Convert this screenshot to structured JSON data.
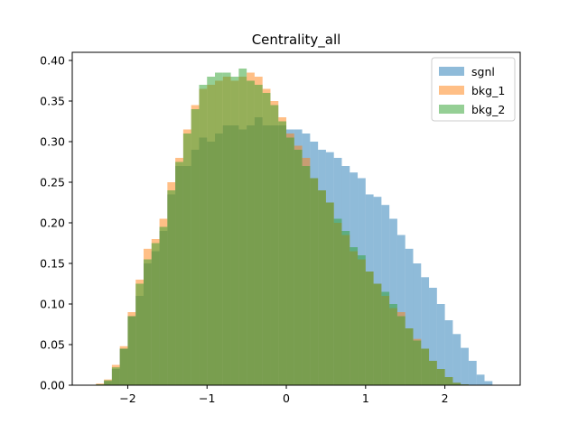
{
  "chart_data": {
    "type": "histogram",
    "title": "Centrality_all",
    "xlabel": "",
    "ylabel": "",
    "xlim": [
      -2.7,
      2.95
    ],
    "ylim": [
      0,
      0.41
    ],
    "xticks": [
      -2,
      -1,
      0,
      1,
      2
    ],
    "xtick_labels": [
      "−2",
      "−1",
      "0",
      "1",
      "2"
    ],
    "yticks": [
      0.0,
      0.05,
      0.1,
      0.15,
      0.2,
      0.25,
      0.3,
      0.35,
      0.4
    ],
    "ytick_labels": [
      "0.00",
      "0.05",
      "0.10",
      "0.15",
      "0.20",
      "0.25",
      "0.30",
      "0.35",
      "0.40"
    ],
    "grid": false,
    "legend_position": "top-right",
    "bin_start": -2.4,
    "bin_width": 0.1,
    "series": [
      {
        "name": "sgnl",
        "color": "#1f77b4",
        "values": [
          0.001,
          0.005,
          0.02,
          0.045,
          0.085,
          0.11,
          0.15,
          0.165,
          0.19,
          0.235,
          0.27,
          0.27,
          0.29,
          0.305,
          0.3,
          0.31,
          0.32,
          0.32,
          0.315,
          0.32,
          0.33,
          0.32,
          0.32,
          0.32,
          0.315,
          0.315,
          0.31,
          0.3,
          0.29,
          0.287,
          0.28,
          0.27,
          0.262,
          0.255,
          0.235,
          0.232,
          0.222,
          0.205,
          0.185,
          0.168,
          0.15,
          0.133,
          0.12,
          0.1,
          0.08,
          0.063,
          0.046,
          0.03,
          0.013,
          0.005
        ]
      },
      {
        "name": "bkg_1",
        "color": "#ff7f0e",
        "values": [
          0.002,
          0.007,
          0.025,
          0.048,
          0.09,
          0.13,
          0.168,
          0.18,
          0.205,
          0.25,
          0.28,
          0.315,
          0.345,
          0.365,
          0.37,
          0.375,
          0.38,
          0.375,
          0.38,
          0.385,
          0.38,
          0.365,
          0.35,
          0.33,
          0.31,
          0.295,
          0.28,
          0.255,
          0.24,
          0.225,
          0.2,
          0.185,
          0.165,
          0.155,
          0.14,
          0.125,
          0.11,
          0.095,
          0.09,
          0.07,
          0.057,
          0.045,
          0.03,
          0.02,
          0.01,
          0.003,
          0.001,
          0.0,
          0.0,
          0.0
        ]
      },
      {
        "name": "bkg_2",
        "color": "#2ca02c",
        "values": [
          0.001,
          0.006,
          0.022,
          0.045,
          0.085,
          0.125,
          0.155,
          0.175,
          0.195,
          0.24,
          0.275,
          0.31,
          0.34,
          0.37,
          0.38,
          0.385,
          0.385,
          0.38,
          0.39,
          0.375,
          0.37,
          0.36,
          0.345,
          0.325,
          0.305,
          0.29,
          0.27,
          0.255,
          0.24,
          0.225,
          0.205,
          0.19,
          0.17,
          0.16,
          0.14,
          0.125,
          0.115,
          0.1,
          0.085,
          0.07,
          0.055,
          0.045,
          0.03,
          0.02,
          0.01,
          0.003,
          0.001,
          0.0,
          0.0,
          0.0
        ]
      }
    ]
  }
}
